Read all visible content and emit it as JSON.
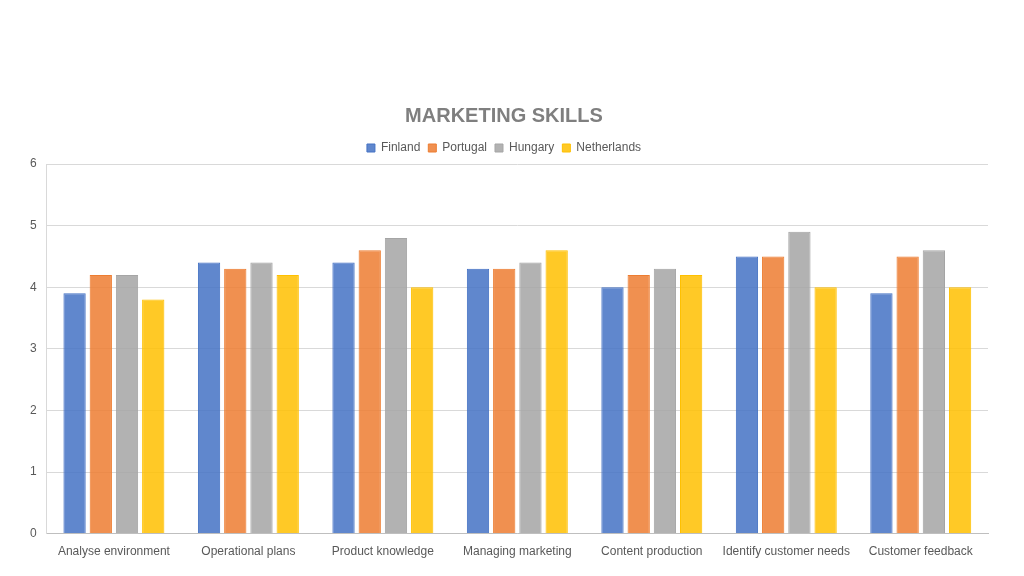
{
  "chart_data": {
    "type": "bar",
    "title": "MARKETING SKILLS",
    "categories": [
      "Analyse environment",
      "Operational plans",
      "Product knowledge",
      "Managing marketing",
      "Content production",
      "Identify customer needs",
      "Customer feedback"
    ],
    "series": [
      {
        "name": "Finland",
        "color": "#4472c4",
        "values": [
          3.9,
          4.4,
          4.4,
          4.3,
          4.0,
          4.5,
          3.9
        ]
      },
      {
        "name": "Portugal",
        "color": "#ed7d31",
        "values": [
          4.2,
          4.3,
          4.6,
          4.3,
          4.2,
          4.5,
          4.5
        ]
      },
      {
        "name": "Hungary",
        "color": "#a5a5a5",
        "values": [
          4.2,
          4.4,
          4.8,
          4.4,
          4.3,
          4.9,
          4.6
        ]
      },
      {
        "name": "Netherlands",
        "color": "#ffc000",
        "values": [
          3.8,
          4.2,
          4.0,
          4.6,
          4.2,
          4.0,
          4.0
        ]
      }
    ],
    "ylim": [
      0,
      6
    ],
    "yticks": [
      0,
      1,
      2,
      3,
      4,
      5,
      6
    ],
    "grid": true,
    "legend": "top"
  }
}
